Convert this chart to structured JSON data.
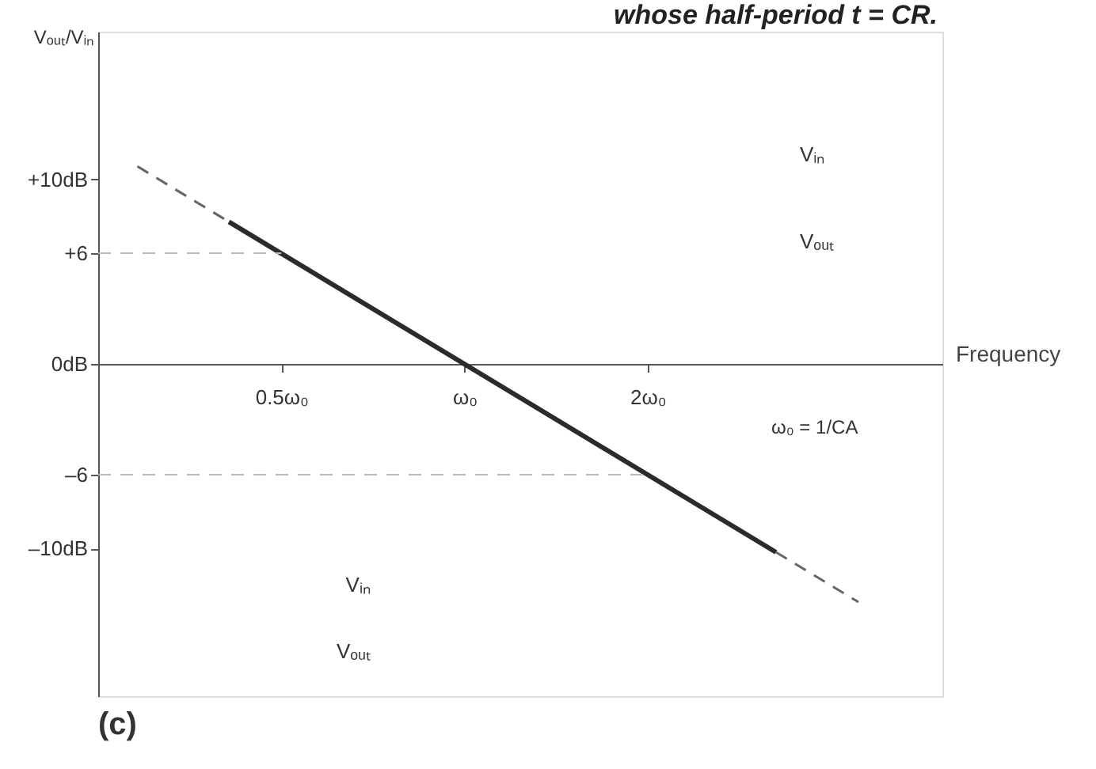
{
  "chart_data": {
    "type": "line",
    "title": "whose half-period t = CR.",
    "xlabel": "Frequency",
    "ylabel": "Vₒᵤₜ/Vᵢₙ",
    "log": "x",
    "xlim": [
      0.25,
      6.1
    ],
    "ylim": [
      -18,
      18
    ],
    "xticks": [
      {
        "value": 0.5,
        "label": "0.5ω₀"
      },
      {
        "value": 1,
        "label": "ω₀"
      },
      {
        "value": 2,
        "label": "2ω₀"
      }
    ],
    "yticks": [
      {
        "value": 10,
        "label": "+10dB"
      },
      {
        "value": 6,
        "label": "+6"
      },
      {
        "value": 0,
        "label": "0dB"
      },
      {
        "value": -6,
        "label": "–6"
      },
      {
        "value": -10,
        "label": "–10dB"
      }
    ],
    "grid": false,
    "marker": "none",
    "series": [
      {
        "color": "#2b2b2b",
        "line_style": "solid",
        "x": [
          0.41,
          3.25
        ],
        "values": [
          7.7,
          -10.2
        ]
      },
      {
        "color": "#666666",
        "line_style": "dashed",
        "x": [
          0.29,
          0.41
        ],
        "values": [
          10.7,
          7.7
        ]
      },
      {
        "color": "#666666",
        "line_style": "dashed",
        "x": [
          3.25,
          4.44
        ],
        "values": [
          -10.2,
          -12.9
        ]
      },
      {
        "color": "#bbbbbb",
        "line_style": "dashed",
        "x": [
          0.25,
          0.5
        ],
        "values": [
          6,
          6
        ]
      },
      {
        "color": "#bbbbbb",
        "line_style": "dashed",
        "x": [
          0.25,
          2
        ],
        "values": [
          -6,
          -6
        ]
      }
    ],
    "annotations": [
      "(c)",
      "ω₀ = 1/CA",
      "Vᵢₙ",
      "Vₒᵤₜ",
      "Vᵢₙ",
      "Vₒᵤₜ"
    ]
  }
}
